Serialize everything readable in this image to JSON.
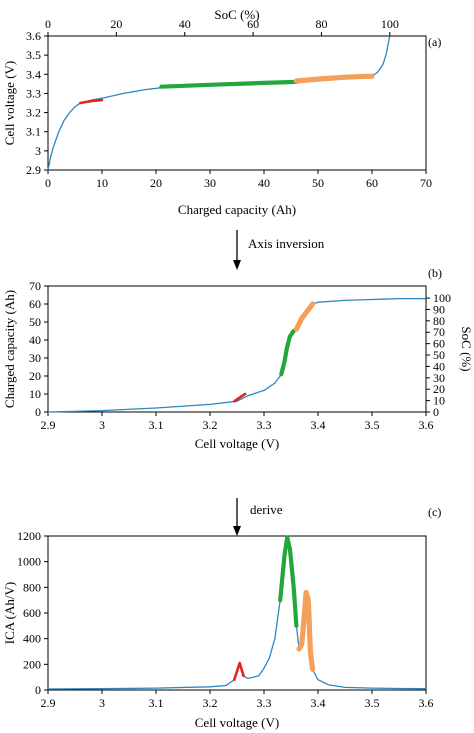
{
  "colors": {
    "curve": "#2e86c1",
    "red": "#e8221b",
    "green": "#22a83a",
    "orange": "#f5a05a",
    "axis": "#000000"
  },
  "panel_a": {
    "label": "(a)",
    "xlabel": "Charged capacity (Ah)",
    "ylabel": "Cell voltage (V)",
    "top_label": "SoC (%)"
  },
  "panel_b": {
    "label": "(b)",
    "xlabel": "Cell voltage (V)",
    "ylabel": "Charged capacity (Ah)",
    "right_label": "SoC (%)"
  },
  "panel_c": {
    "label": "(c)",
    "xlabel": "Cell voltage (V)",
    "ylabel": "ICA (Ah/V)"
  },
  "arrows": {
    "first": "Axis inversion",
    "second": "derive"
  },
  "chart_data": [
    {
      "type": "line",
      "panel": "a",
      "xlabel": "Charged capacity (Ah)",
      "ylabel": "Cell voltage (V)",
      "x2label": "SoC (%)",
      "xlim": [
        0,
        70
      ],
      "ylim": [
        2.9,
        3.6
      ],
      "x2lim": [
        0,
        100
      ],
      "xticks": [
        "0",
        "10",
        "20",
        "30",
        "40",
        "50",
        "60",
        "70"
      ],
      "yticks": [
        "2.9",
        "3",
        "3.1",
        "3.2",
        "3.3",
        "3.4",
        "3.5",
        "3.6"
      ],
      "x2ticks": [
        "0",
        "20",
        "40",
        "60",
        "80",
        "100"
      ],
      "grid": false,
      "curve": [
        [
          0,
          2.9
        ],
        [
          0.5,
          2.97
        ],
        [
          1,
          3.02
        ],
        [
          2,
          3.1
        ],
        [
          3,
          3.16
        ],
        [
          4,
          3.2
        ],
        [
          5,
          3.23
        ],
        [
          6,
          3.25
        ],
        [
          8,
          3.265
        ],
        [
          10,
          3.275
        ],
        [
          14,
          3.3
        ],
        [
          18,
          3.32
        ],
        [
          21,
          3.33
        ],
        [
          30,
          3.345
        ],
        [
          40,
          3.355
        ],
        [
          46,
          3.365
        ],
        [
          50,
          3.375
        ],
        [
          55,
          3.385
        ],
        [
          59,
          3.39
        ],
        [
          60,
          3.39
        ],
        [
          61,
          3.41
        ],
        [
          62,
          3.45
        ],
        [
          62.6,
          3.5
        ],
        [
          63,
          3.56
        ],
        [
          63.3,
          3.6
        ]
      ],
      "highlights": [
        {
          "color": "red",
          "points": [
            [
              6,
              3.25
            ],
            [
              8,
              3.26
            ],
            [
              10,
              3.265
            ]
          ]
        },
        {
          "color": "green",
          "points": [
            [
              21,
              3.335
            ],
            [
              30,
              3.345
            ],
            [
              40,
              3.355
            ],
            [
              46,
              3.36
            ]
          ]
        },
        {
          "color": "orange",
          "points": [
            [
              46,
              3.365
            ],
            [
              50,
              3.375
            ],
            [
              55,
              3.385
            ],
            [
              60,
              3.39
            ]
          ]
        }
      ]
    },
    {
      "type": "line",
      "panel": "b",
      "xlabel": "Cell voltage (V)",
      "ylabel": "Charged capacity (Ah)",
      "y2label": "SoC (%)",
      "xlim": [
        2.9,
        3.6
      ],
      "ylim": [
        0,
        70
      ],
      "y2lim": [
        0,
        100
      ],
      "xticks": [
        "2.9",
        "3",
        "3.1",
        "3.2",
        "3.3",
        "3.4",
        "3.5",
        "3.6"
      ],
      "yticks": [
        "0",
        "10",
        "20",
        "30",
        "40",
        "50",
        "60",
        "70"
      ],
      "y2ticks": [
        "0",
        "10",
        "20",
        "30",
        "40",
        "50",
        "60",
        "70",
        "80",
        "90",
        "100"
      ],
      "grid": false,
      "curve": [
        [
          2.9,
          0
        ],
        [
          3.0,
          0.8
        ],
        [
          3.1,
          2.2
        ],
        [
          3.2,
          4.2
        ],
        [
          3.25,
          6
        ],
        [
          3.27,
          9
        ],
        [
          3.3,
          12
        ],
        [
          3.32,
          16
        ],
        [
          3.335,
          22
        ],
        [
          3.34,
          30
        ],
        [
          3.345,
          38
        ],
        [
          3.355,
          45
        ],
        [
          3.365,
          50
        ],
        [
          3.375,
          55
        ],
        [
          3.385,
          58
        ],
        [
          3.39,
          60
        ],
        [
          3.4,
          61
        ],
        [
          3.45,
          62
        ],
        [
          3.5,
          62.5
        ],
        [
          3.55,
          63
        ],
        [
          3.6,
          63
        ]
      ],
      "highlights": [
        {
          "color": "red",
          "points": [
            [
              3.245,
              6
            ],
            [
              3.255,
              8
            ],
            [
              3.265,
              10
            ]
          ]
        },
        {
          "color": "green",
          "points": [
            [
              3.332,
              21
            ],
            [
              3.338,
              28
            ],
            [
              3.342,
              35
            ],
            [
              3.348,
              42
            ],
            [
              3.355,
              45
            ]
          ]
        },
        {
          "color": "orange",
          "points": [
            [
              3.36,
              46
            ],
            [
              3.37,
              52
            ],
            [
              3.38,
              56
            ],
            [
              3.39,
              60
            ]
          ]
        }
      ]
    },
    {
      "type": "line",
      "panel": "c",
      "xlabel": "Cell voltage (V)",
      "ylabel": "ICA (Ah/V)",
      "xlim": [
        2.9,
        3.6
      ],
      "ylim": [
        0,
        1200
      ],
      "xticks": [
        "2.9",
        "3",
        "3.1",
        "3.2",
        "3.3",
        "3.4",
        "3.5",
        "3.6"
      ],
      "yticks": [
        "0",
        "200",
        "400",
        "600",
        "800",
        "1000",
        "1200"
      ],
      "grid": false,
      "curve": [
        [
          2.9,
          8
        ],
        [
          3.0,
          10
        ],
        [
          3.1,
          15
        ],
        [
          3.2,
          25
        ],
        [
          3.23,
          35
        ],
        [
          3.245,
          80
        ],
        [
          3.255,
          210
        ],
        [
          3.262,
          110
        ],
        [
          3.27,
          90
        ],
        [
          3.29,
          110
        ],
        [
          3.3,
          170
        ],
        [
          3.31,
          250
        ],
        [
          3.32,
          400
        ],
        [
          3.33,
          700
        ],
        [
          3.338,
          1050
        ],
        [
          3.343,
          1190
        ],
        [
          3.348,
          1100
        ],
        [
          3.355,
          800
        ],
        [
          3.36,
          500
        ],
        [
          3.365,
          320
        ],
        [
          3.37,
          360
        ],
        [
          3.375,
          600
        ],
        [
          3.378,
          760
        ],
        [
          3.382,
          700
        ],
        [
          3.386,
          300
        ],
        [
          3.39,
          160
        ],
        [
          3.4,
          80
        ],
        [
          3.42,
          40
        ],
        [
          3.45,
          20
        ],
        [
          3.5,
          15
        ],
        [
          3.55,
          12
        ],
        [
          3.6,
          10
        ]
      ],
      "highlights": [
        {
          "color": "red",
          "points": [
            [
              3.245,
              80
            ],
            [
              3.255,
              210
            ],
            [
              3.262,
              110
            ]
          ]
        },
        {
          "color": "green",
          "points": [
            [
              3.33,
              700
            ],
            [
              3.338,
              1050
            ],
            [
              3.343,
              1190
            ],
            [
              3.348,
              1100
            ],
            [
              3.355,
              800
            ],
            [
              3.36,
              500
            ]
          ]
        },
        {
          "color": "orange",
          "points": [
            [
              3.365,
              320
            ],
            [
              3.37,
              360
            ],
            [
              3.375,
              600
            ],
            [
              3.378,
              760
            ],
            [
              3.382,
              700
            ],
            [
              3.386,
              300
            ],
            [
              3.39,
              160
            ]
          ]
        }
      ]
    }
  ]
}
